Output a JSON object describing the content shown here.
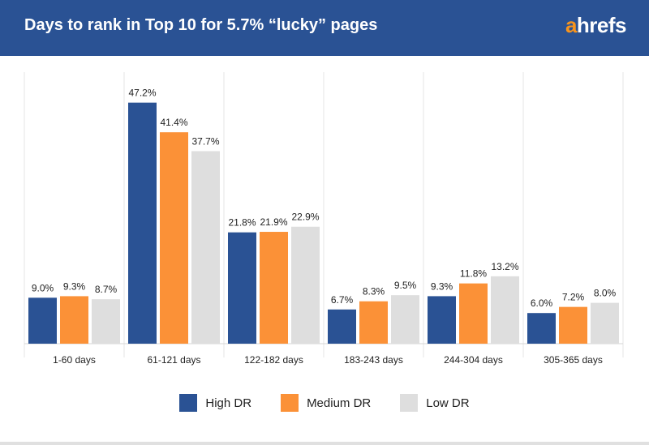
{
  "header": {
    "title": "Days to rank in Top 10 for 5.7% “lucky” pages",
    "logo_prefix": "a",
    "logo_suffix": "hrefs"
  },
  "colors": {
    "header_bg": "#2a5294",
    "high_dr": "#2a5294",
    "medium_dr": "#fb9137",
    "low_dr": "#dedede",
    "logo_accent": "#f7941d"
  },
  "chart_data": {
    "type": "bar",
    "title": "Days to rank in Top 10 for 5.7% “lucky” pages",
    "xlabel": "",
    "ylabel": "",
    "ylim": [
      0,
      50
    ],
    "grid": false,
    "legend_position": "bottom-center",
    "categories": [
      "1-60 days",
      "61-121 days",
      "122-182 days",
      "183-243 days",
      "244-304 days",
      "305-365 days"
    ],
    "series": [
      {
        "name": "High DR",
        "color": "#2a5294",
        "values": [
          9.0,
          47.2,
          21.8,
          6.7,
          9.3,
          6.0
        ],
        "labels": [
          "9.0%",
          "47.2%",
          "21.8%",
          "6.7%",
          "9.3%",
          "6.0%"
        ]
      },
      {
        "name": "Medium DR",
        "color": "#fb9137",
        "values": [
          9.3,
          41.4,
          21.9,
          8.3,
          11.8,
          7.2
        ],
        "labels": [
          "9.3%",
          "41.4%",
          "21.9%",
          "8.3%",
          "11.8%",
          "7.2%"
        ]
      },
      {
        "name": "Low DR",
        "color": "#dedede",
        "values": [
          8.7,
          37.7,
          22.9,
          9.5,
          13.2,
          8.0
        ],
        "labels": [
          "8.7%",
          "37.7%",
          "22.9%",
          "9.5%",
          "13.2%",
          "8.0%"
        ]
      }
    ]
  }
}
